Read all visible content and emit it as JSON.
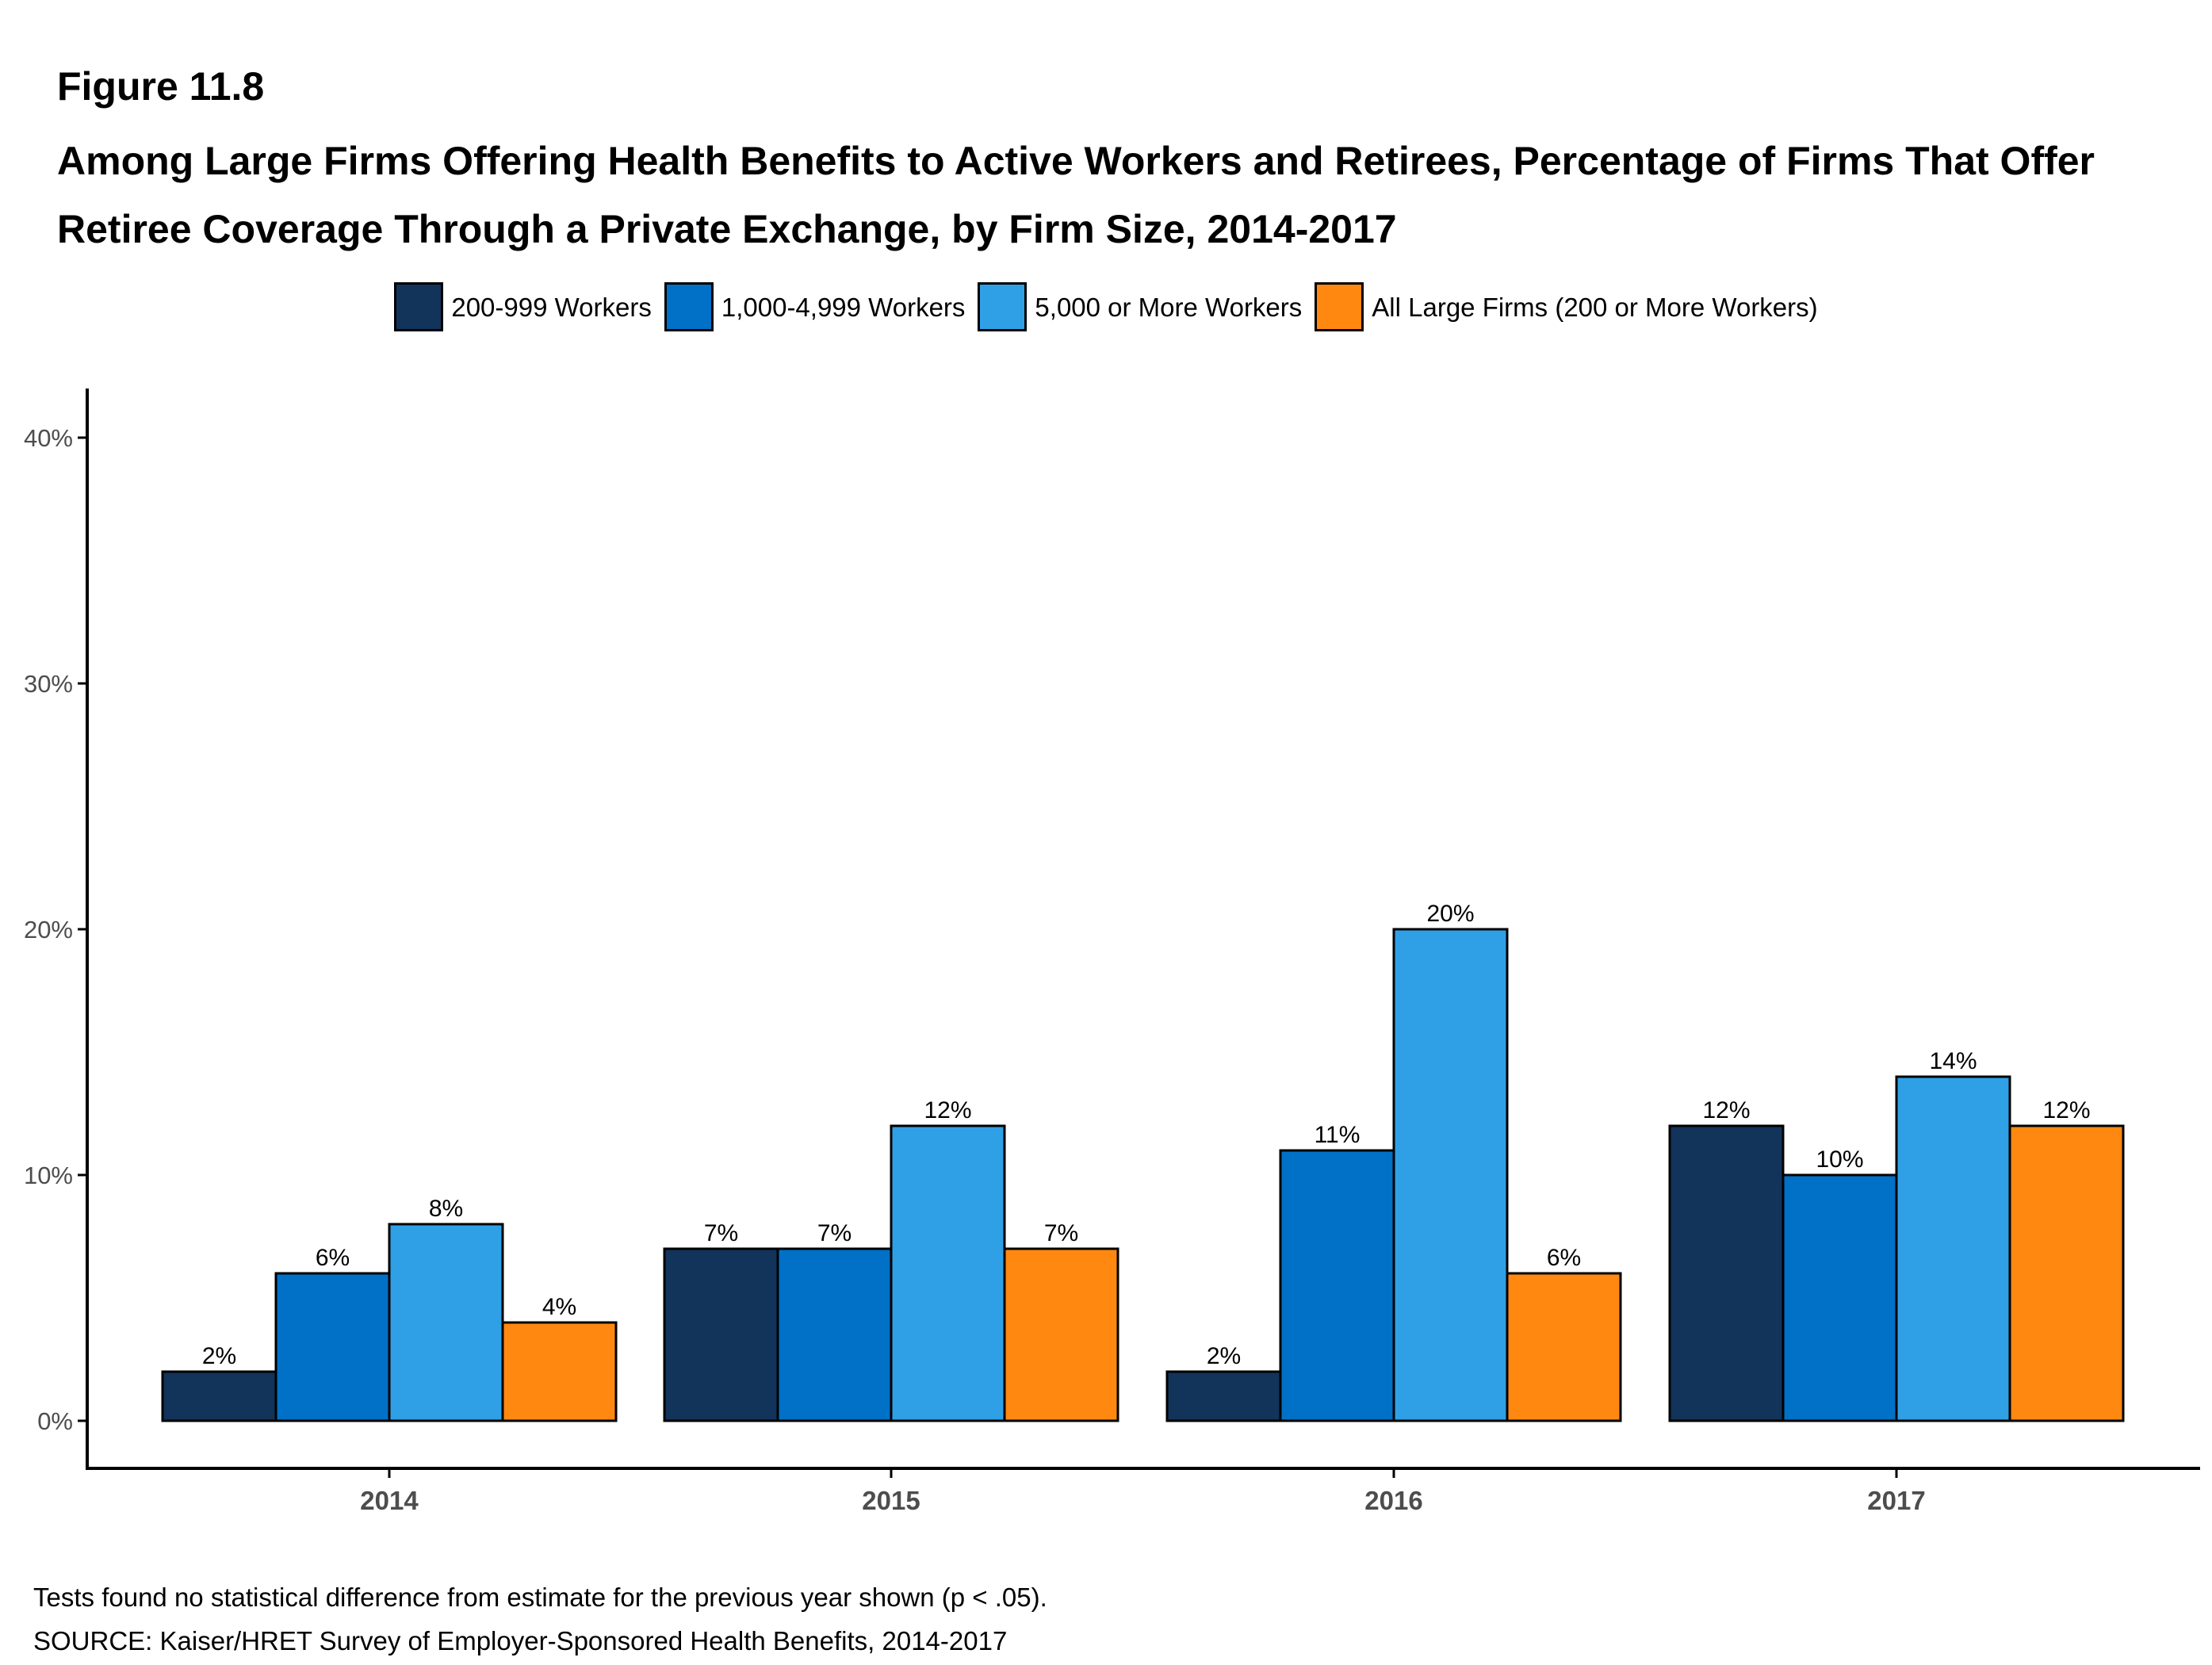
{
  "figure_number": "Figure 11.8",
  "title": "Among Large Firms Offering Health Benefits to Active Workers and Retirees, Percentage of Firms That Offer Retiree Coverage Through a Private Exchange, by Firm Size, 2014-2017",
  "chart_data": {
    "type": "bar",
    "title": "Among Large Firms Offering Health Benefits to Active Workers and Retirees, Percentage of Firms That Offer Retiree Coverage Through a Private Exchange, by Firm Size, 2014-2017",
    "xlabel": "",
    "ylabel": "",
    "categories": [
      "2014",
      "2015",
      "2016",
      "2017"
    ],
    "ylim": [
      0,
      0.42
    ],
    "yticks": [
      0,
      0.1,
      0.2,
      0.3,
      0.4
    ],
    "ytick_labels": [
      "0%",
      "10%",
      "20%",
      "30%",
      "40%"
    ],
    "grid": false,
    "legend_position": "top",
    "value_format": "percent",
    "series": [
      {
        "name": "200-999 Workers",
        "color": "#12335A",
        "values": [
          0.02,
          0.07,
          0.02,
          0.12
        ],
        "labels": [
          "2%",
          "7%",
          "2%",
          "12%"
        ]
      },
      {
        "name": "1,000-4,999 Workers",
        "color": "#0071C6",
        "values": [
          0.06,
          0.07,
          0.11,
          0.1
        ],
        "labels": [
          "6%",
          "7%",
          "11%",
          "10%"
        ]
      },
      {
        "name": "5,000 or More Workers",
        "color": "#30A0E6",
        "values": [
          0.08,
          0.12,
          0.2,
          0.14
        ],
        "labels": [
          "8%",
          "12%",
          "20%",
          "14%"
        ]
      },
      {
        "name": "All Large Firms (200 or More Workers)",
        "color": "#FF8810",
        "values": [
          0.04,
          0.07,
          0.06,
          0.12
        ],
        "labels": [
          "4%",
          "7%",
          "6%",
          "12%"
        ]
      }
    ]
  },
  "footnotes": {
    "note": "Tests found no statistical difference from estimate for the previous year shown (p < .05).",
    "source": "SOURCE: Kaiser/HRET Survey of Employer-Sponsored Health Benefits, 2014-2017"
  }
}
